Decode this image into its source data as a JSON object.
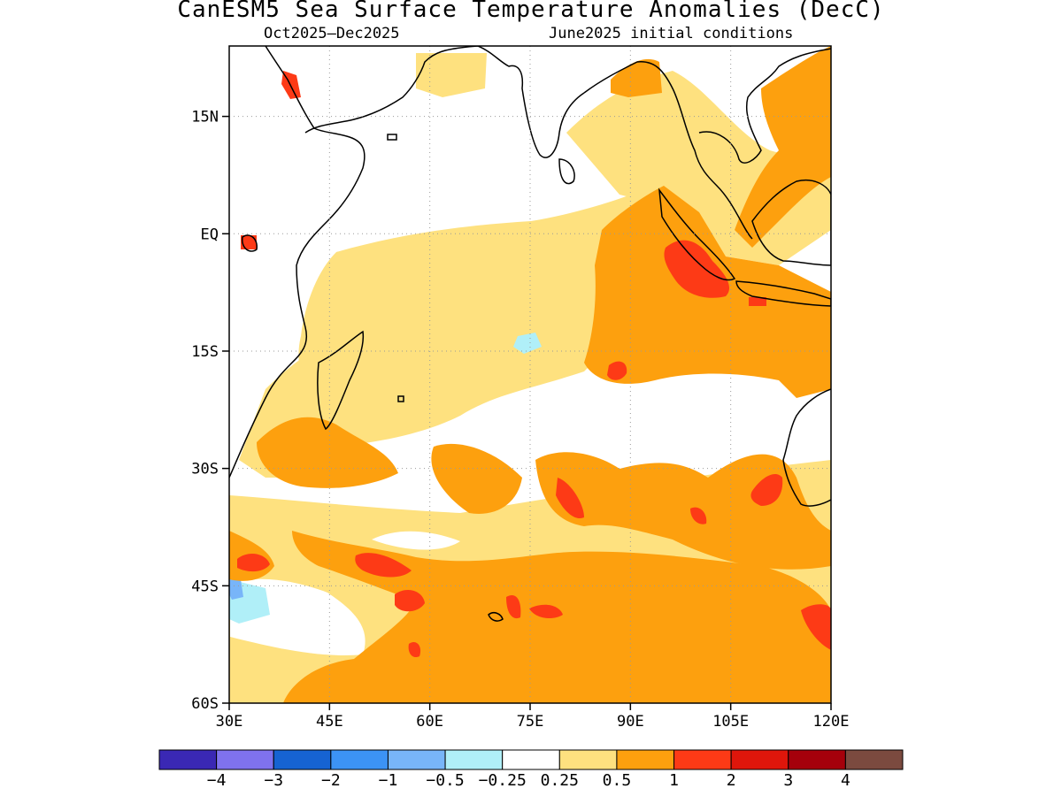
{
  "title": "CanESM5 Sea Surface Temperature Anomalies (DecC)",
  "subtitle_left": "Oct2025–Dec2025",
  "subtitle_right": "June2025 initial conditions",
  "map": {
    "lon_range": [
      30,
      120
    ],
    "lat_range": [
      -60,
      24
    ],
    "lon_ticks": [
      "30E",
      "45E",
      "60E",
      "75E",
      "90E",
      "105E",
      "120E"
    ],
    "lat_ticks": [
      "15N",
      "EQ",
      "15S",
      "30S",
      "45S",
      "60S"
    ],
    "grid": true
  },
  "colorbar": {
    "colors": [
      "#3a28b4",
      "#7f72ee",
      "#1663d2",
      "#3c93f5",
      "#78b5f9",
      "#b0eff8",
      "#ffffff",
      "#fee17f",
      "#fda00e",
      "#fd3a16",
      "#df160b",
      "#a5000b",
      "#7b4a3f"
    ],
    "labels": [
      "−4",
      "−3",
      "−2",
      "−1",
      "−0.5",
      "−0.25",
      "0.25",
      "0.5",
      "1",
      "2",
      "3",
      "4"
    ]
  }
}
